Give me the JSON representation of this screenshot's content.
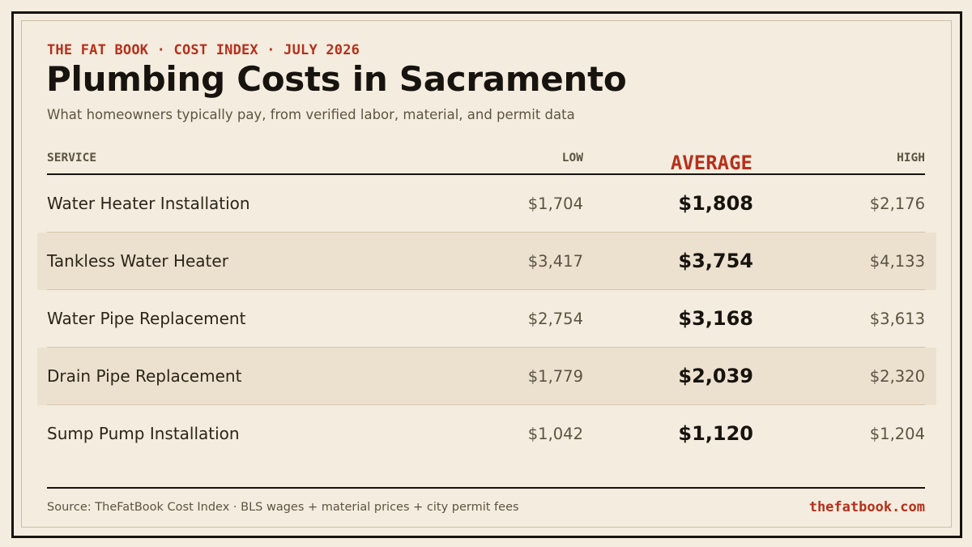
{
  "header": {
    "eyebrow": "THE FAT BOOK · COST INDEX · JULY 2026",
    "title": "Plumbing Costs in Sacramento",
    "subtitle": "What homeowners typically pay, from verified labor, material, and permit data"
  },
  "table": {
    "columns": {
      "service": "SERVICE",
      "low": "LOW",
      "average": "AVERAGE",
      "high": "HIGH"
    },
    "rows": [
      {
        "service": "Water Heater Installation",
        "low": "$1,704",
        "average": "$1,808",
        "high": "$2,176"
      },
      {
        "service": "Tankless Water Heater",
        "low": "$3,417",
        "average": "$3,754",
        "high": "$4,133"
      },
      {
        "service": "Water Pipe Replacement",
        "low": "$2,754",
        "average": "$3,168",
        "high": "$3,613"
      },
      {
        "service": "Drain Pipe Replacement",
        "low": "$1,779",
        "average": "$2,039",
        "high": "$2,320"
      },
      {
        "service": "Sump Pump Installation",
        "low": "$1,042",
        "average": "$1,120",
        "high": "$1,204"
      }
    ]
  },
  "footer": {
    "source": "Source: TheFatBook Cost Index · BLS wages + material prices + city permit fees",
    "site": "thefatbook.com"
  },
  "colors": {
    "background": "#f4ecde",
    "accent": "#b5301c",
    "ink": "#17130e",
    "row_shade": "#ece1cf"
  }
}
